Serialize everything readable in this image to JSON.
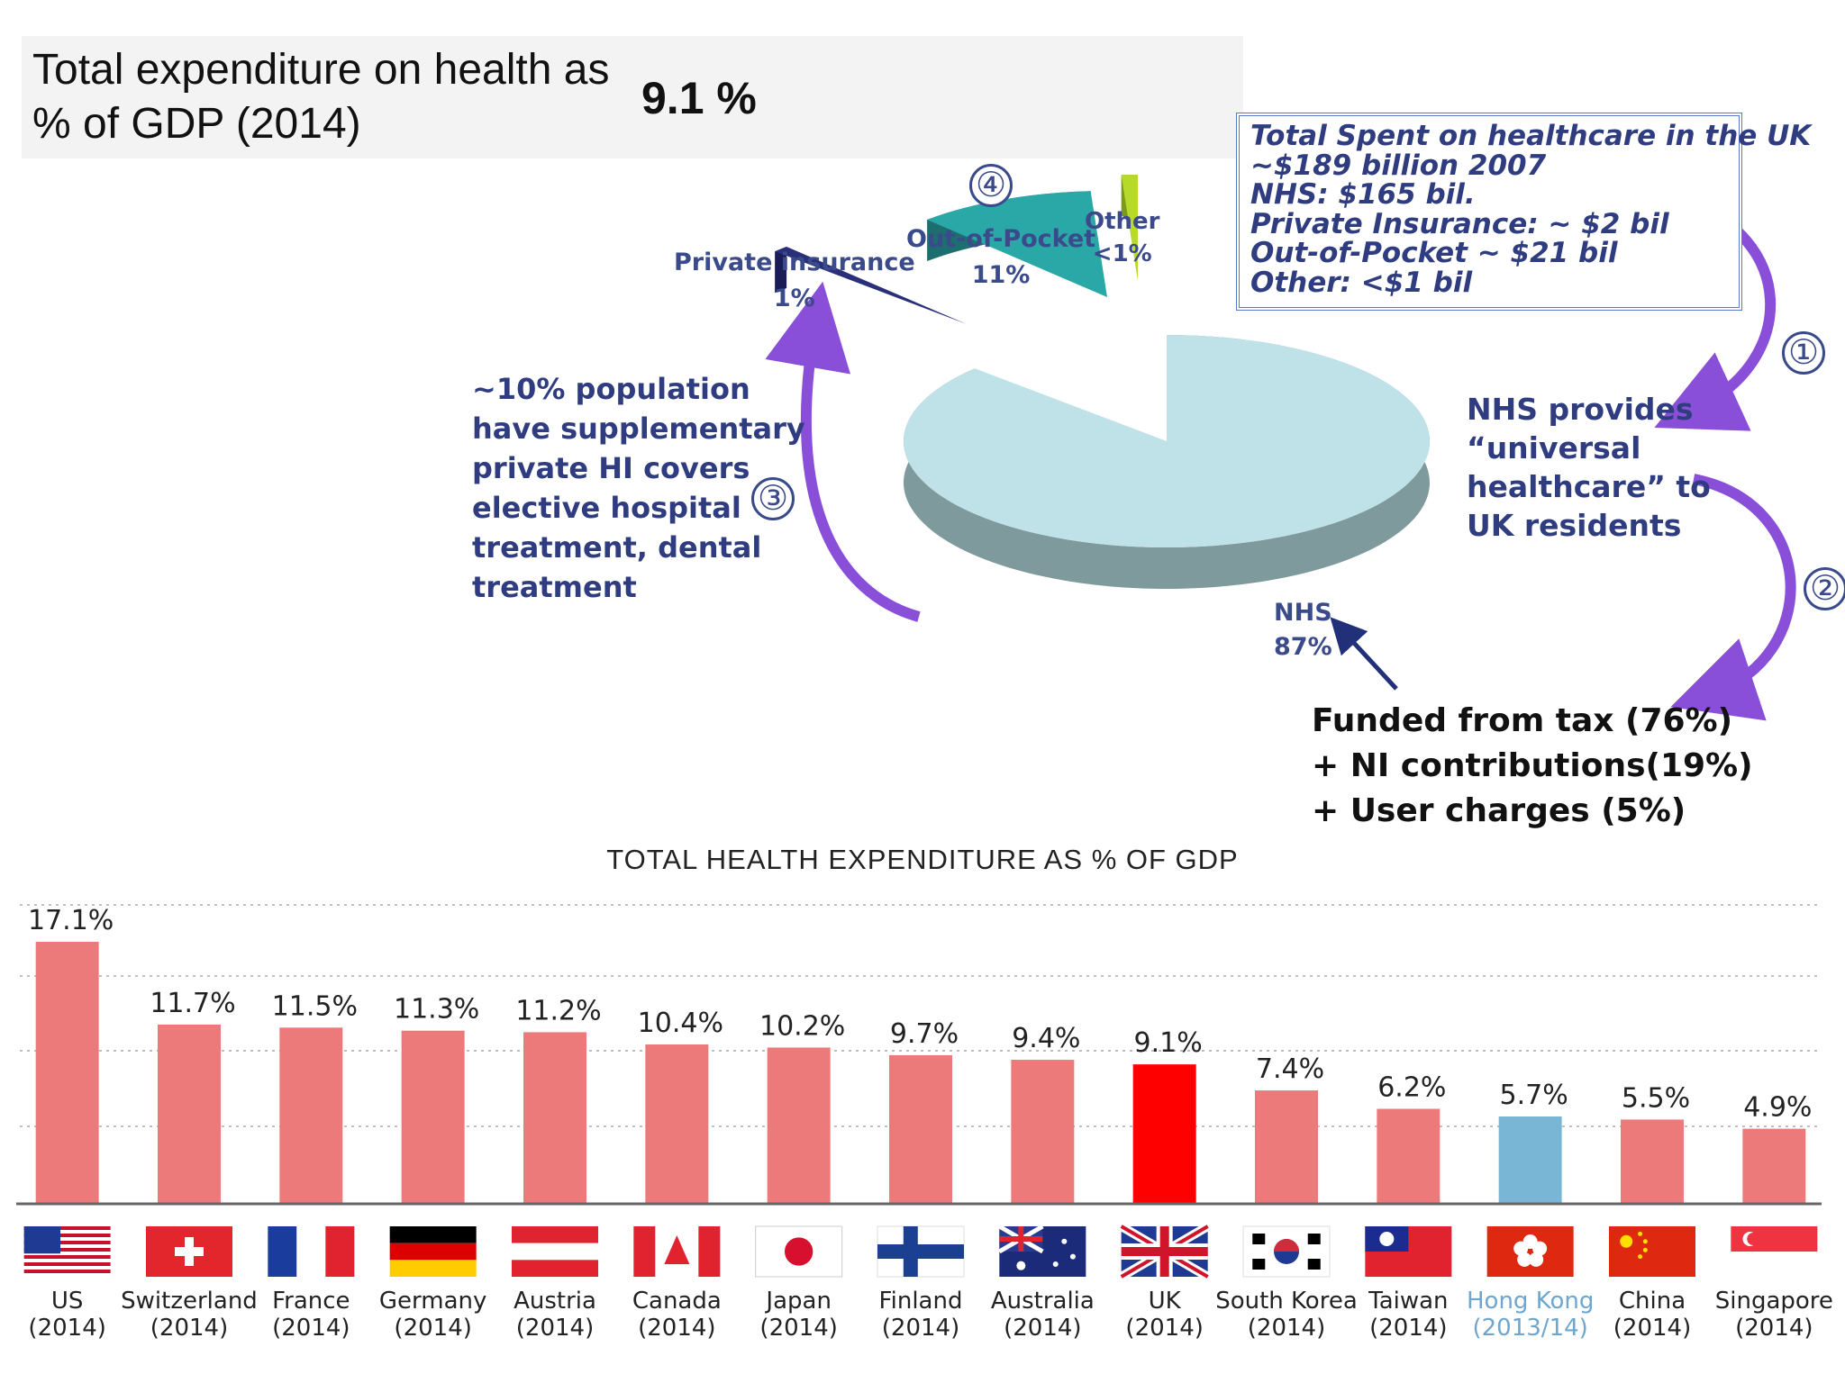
{
  "header": {
    "label": "Total expenditure on health as % of GDP (2014)",
    "value": "9.1 %"
  },
  "pie": {
    "slices": [
      {
        "name": "NHS",
        "value": 87,
        "label": "NHS",
        "pct": "87%",
        "color": "#bfe1e8",
        "side": "#7f9a9c"
      },
      {
        "name": "Private insurance",
        "value": 1,
        "label": "Private insurance",
        "pct": "1%",
        "color": "#2a2f7a",
        "side": "#1a1d55"
      },
      {
        "name": "Out-of-Pocket",
        "value": 11,
        "label": "Out-of-Pocket",
        "pct": "11%",
        "color": "#2aa8a8",
        "side": "#1d6f6f"
      },
      {
        "name": "Other",
        "value": 1,
        "label": "Other",
        "pct": "<1%",
        "color": "#b6d92a",
        "side": "#7a9a1a"
      }
    ]
  },
  "callout_numbers": [
    "④",
    "③",
    "①",
    "②"
  ],
  "supplementary_note": {
    "lines": [
      "~10% population",
      "have supplementary",
      "private HI covers",
      "elective hospital",
      "treatment, dental",
      "treatment"
    ]
  },
  "info_box": {
    "lines": [
      "Total Spent on healthcare in the UK",
      "~$189 billion 2007",
      "NHS: $165 bil.",
      "Private Insurance: ~ $2 bil",
      "Out-of-Pocket ~ $21 bil",
      "Other: <$1 bil"
    ]
  },
  "nhs_provides": {
    "lines": [
      "NHS provides",
      "“universal",
      "healthcare” to",
      "UK  residents"
    ]
  },
  "funding": {
    "lines": [
      "Funded from tax (76%)",
      "+ NI contributions(19%)",
      "+ User charges (5%)"
    ]
  },
  "colors": {
    "bar": "#ed7a7a",
    "bar_highlight": "#ff0000",
    "bar_hongkong": "#79b6d6",
    "accent_arrow": "#8a4fd8",
    "label_blue": "#2f3d80"
  },
  "chart_data": {
    "type": "bar",
    "title": "TOTAL HEALTH EXPENDITURE AS % OF GDP",
    "ylim": [
      0,
      18
    ],
    "grid": true,
    "categories": [
      {
        "country": "US",
        "year": "(2014)",
        "flag": "us-flag-icon"
      },
      {
        "country": "Switzerland",
        "year": "(2014)",
        "flag": "switzerland-flag-icon"
      },
      {
        "country": "France",
        "year": "(2014)",
        "flag": "france-flag-icon"
      },
      {
        "country": "Germany",
        "year": "(2014)",
        "flag": "germany-flag-icon"
      },
      {
        "country": "Austria",
        "year": "(2014)",
        "flag": "austria-flag-icon"
      },
      {
        "country": "Canada",
        "year": "(2014)",
        "flag": "canada-flag-icon"
      },
      {
        "country": "Japan",
        "year": "(2014)",
        "flag": "japan-flag-icon"
      },
      {
        "country": "Finland",
        "year": "(2014)",
        "flag": "finland-flag-icon"
      },
      {
        "country": "Australia",
        "year": "(2014)",
        "flag": "australia-flag-icon"
      },
      {
        "country": "UK",
        "year": "(2014)",
        "flag": "uk-flag-icon"
      },
      {
        "country": "South Korea",
        "year": "(2014)",
        "flag": "south-korea-flag-icon"
      },
      {
        "country": "Taiwan",
        "year": "(2014)",
        "flag": "taiwan-flag-icon"
      },
      {
        "country": "Hong Kong",
        "year": "(2013/14)",
        "flag": "hong-kong-flag-icon"
      },
      {
        "country": "China",
        "year": "(2014)",
        "flag": "china-flag-icon"
      },
      {
        "country": "Singapore",
        "year": "(2014)",
        "flag": "singapore-flag-icon"
      }
    ],
    "values": [
      17.1,
      11.7,
      11.5,
      11.3,
      11.2,
      10.4,
      10.2,
      9.7,
      9.4,
      9.1,
      7.4,
      6.2,
      5.7,
      5.5,
      4.9
    ],
    "data_labels": [
      "17.1%",
      "11.7%",
      "11.5%",
      "11.3%",
      "11.2%",
      "10.4%",
      "10.2%",
      "9.7%",
      "9.4%",
      "9.1%",
      "7.4%",
      "6.2%",
      "5.7%",
      "5.5%",
      "4.9%"
    ]
  }
}
